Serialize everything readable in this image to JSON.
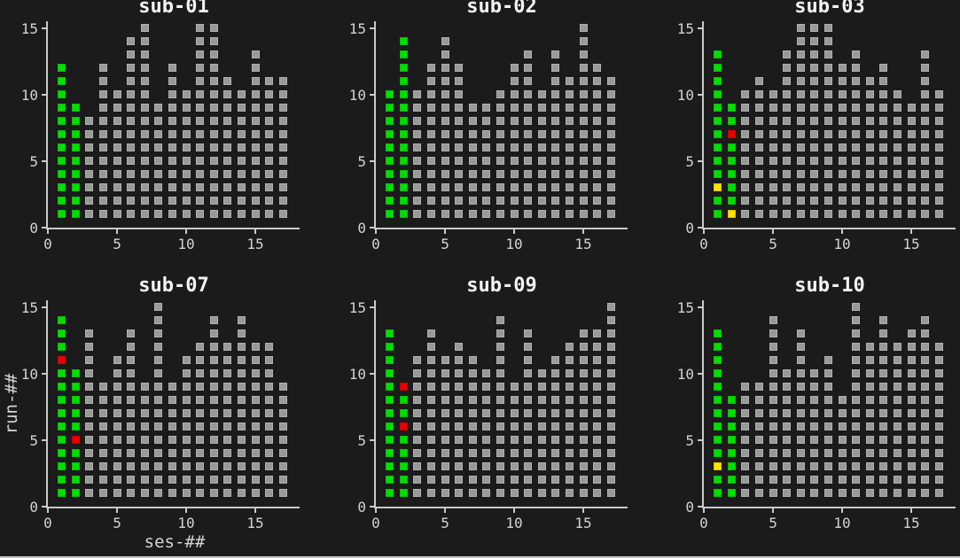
{
  "figure": {
    "background": "#1b1b1b",
    "bottom_edge_color": "#c4c4c4"
  },
  "labels": {
    "xlabel": "ses-##",
    "ylabel": "run-##"
  },
  "axis": {
    "x_ticks": [
      0,
      5,
      10,
      15
    ],
    "y_ticks": [
      0,
      5,
      10,
      15
    ],
    "xlim": [
      0,
      18.2
    ],
    "ylim": [
      0,
      15.5
    ],
    "grid": false,
    "legend": "none"
  },
  "colors": {
    "marker_gray": "#999999",
    "marker_gray_border": "#b0b0b0",
    "marker_green": "#00dd00",
    "marker_green_border": "#00c300",
    "marker_red": "#e80000",
    "marker_red_border": "#c90000",
    "marker_yellow": "#ffe100",
    "marker_yellow_border": "#dcc200",
    "axis": "#c9c9c9",
    "tick_text": "#d4d4d4",
    "title_text": "#f4f4f4"
  },
  "chart_data": [
    {
      "type": "scatter",
      "marker": "square",
      "title": "sub-01",
      "session_range": [
        1,
        17
      ],
      "runs_per_session": [
        12,
        9,
        8,
        12,
        10,
        14,
        15,
        9,
        12,
        10,
        15,
        15,
        11,
        10,
        13,
        11,
        11
      ],
      "green_columns": [
        1,
        2
      ],
      "overrides": []
    },
    {
      "type": "scatter",
      "marker": "square",
      "title": "sub-02",
      "session_range": [
        1,
        17
      ],
      "runs_per_session": [
        10,
        14,
        10,
        12,
        14,
        12,
        9,
        9,
        10,
        12,
        13,
        10,
        13,
        11,
        15,
        12,
        11
      ],
      "green_columns": [
        1,
        2
      ],
      "overrides": []
    },
    {
      "type": "scatter",
      "marker": "square",
      "title": "sub-03",
      "session_range": [
        1,
        17
      ],
      "runs_per_session": [
        13,
        9,
        10,
        11,
        10,
        13,
        15,
        15,
        15,
        12,
        13,
        11,
        12,
        10,
        9,
        13,
        10
      ],
      "green_columns": [
        1,
        2
      ],
      "overrides": [
        {
          "x": 1,
          "y": 3,
          "color": "yellow"
        },
        {
          "x": 2,
          "y": 1,
          "color": "yellow"
        },
        {
          "x": 2,
          "y": 7,
          "color": "red"
        }
      ]
    },
    {
      "type": "scatter",
      "marker": "square",
      "title": "sub-07",
      "session_range": [
        1,
        17
      ],
      "runs_per_session": [
        14,
        10,
        13,
        9,
        11,
        13,
        9,
        15,
        9,
        11,
        12,
        14,
        12,
        14,
        12,
        12,
        9
      ],
      "green_columns": [
        1,
        2
      ],
      "overrides": [
        {
          "x": 1,
          "y": 11,
          "color": "red"
        },
        {
          "x": 2,
          "y": 5,
          "color": "red"
        }
      ]
    },
    {
      "type": "scatter",
      "marker": "square",
      "title": "sub-09",
      "session_range": [
        1,
        17
      ],
      "runs_per_session": [
        13,
        9,
        11,
        13,
        11,
        12,
        11,
        10,
        14,
        9,
        13,
        10,
        11,
        12,
        13,
        13,
        15
      ],
      "green_columns": [
        1,
        2
      ],
      "overrides": [
        {
          "x": 2,
          "y": 6,
          "color": "red"
        },
        {
          "x": 2,
          "y": 9,
          "color": "red"
        }
      ]
    },
    {
      "type": "scatter",
      "marker": "square",
      "title": "sub-10",
      "session_range": [
        1,
        17
      ],
      "runs_per_session": [
        13,
        8,
        9,
        9,
        14,
        10,
        13,
        10,
        11,
        8,
        15,
        12,
        14,
        12,
        13,
        14,
        12
      ],
      "green_columns": [
        1,
        2
      ],
      "overrides": [
        {
          "x": 1,
          "y": 3,
          "color": "yellow"
        }
      ]
    }
  ]
}
